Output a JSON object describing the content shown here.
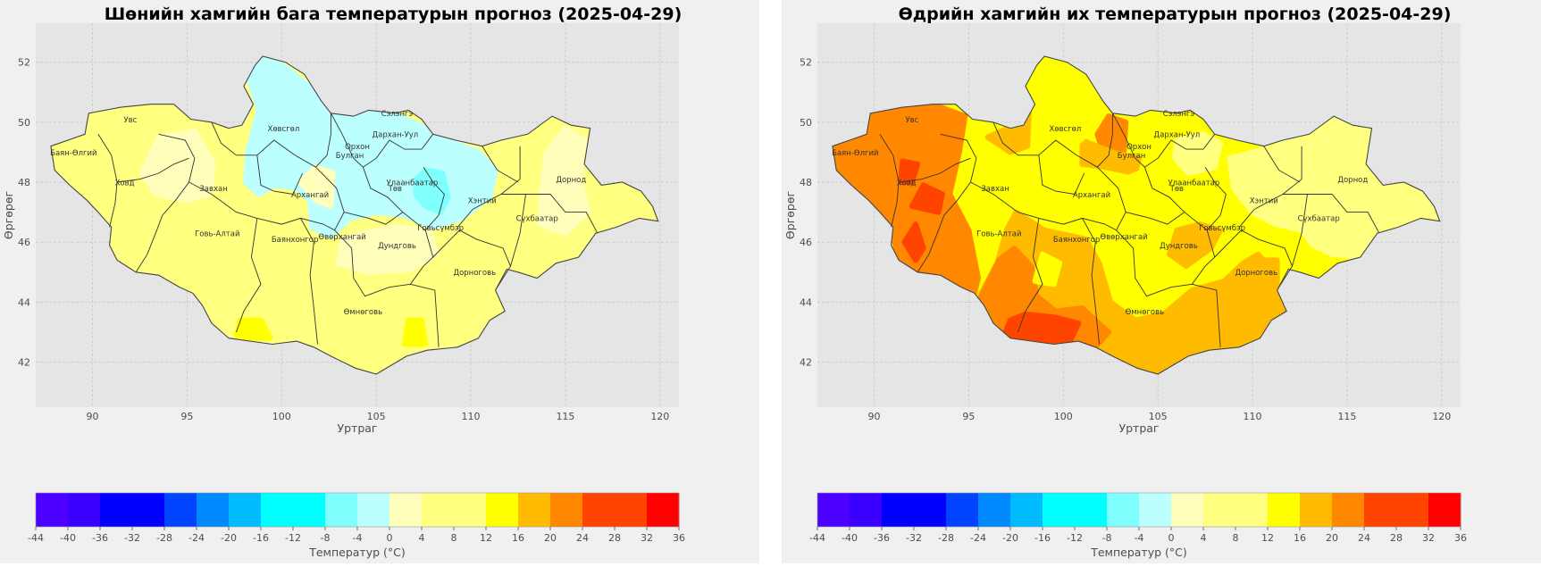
{
  "panels": [
    {
      "title": "Шөнийн хамгийн бага температурын прогноз (2025-04-29)",
      "xlabel": "Уртраг",
      "ylabel": "Өргөрөг",
      "colorbar_label": "Температур (°C)",
      "variant": "min"
    },
    {
      "title": "Өдрийн хамгийн их температурын прогноз (2025-04-29)",
      "xlabel": "Уртраг",
      "ylabel": "Өргөрөг",
      "colorbar_label": "Температур (°C)",
      "variant": "max"
    }
  ],
  "axes": {
    "x_ticks": [
      90,
      95,
      100,
      105,
      110,
      115,
      120
    ],
    "y_ticks": [
      42,
      44,
      46,
      48,
      50,
      52
    ],
    "xlim": [
      87,
      121
    ],
    "ylim": [
      40.5,
      53.3
    ]
  },
  "colorbar": {
    "levels": [
      -44,
      -40,
      -36,
      -28,
      -24,
      -20,
      -16,
      -8,
      -4,
      0,
      4,
      12,
      16,
      20,
      24,
      32,
      36
    ],
    "tick_labels": [
      "-44",
      "-40",
      "-36",
      "-32",
      "-28",
      "-24",
      "-20",
      "-16",
      "-12",
      "-8",
      "-4",
      "0",
      "4",
      "8",
      "12",
      "16",
      "20",
      "24",
      "28",
      "32",
      "36"
    ],
    "colors": [
      "#4c00ff",
      "#3a00ff",
      "#0000ff",
      "#0044ff",
      "#0088ff",
      "#00bbff",
      "#00ffff",
      "#80ffff",
      "#bbffff",
      "#ffffbb",
      "#ffff80",
      "#ffff00",
      "#ffbb00",
      "#ff8800",
      "#ff4400",
      "#ff0000"
    ]
  },
  "provinces": [
    {
      "name": "Увс",
      "lon": 92.0,
      "lat": 50.0
    },
    {
      "name": "Баян-Өлгий",
      "lon": 89.0,
      "lat": 48.9
    },
    {
      "name": "Ховд",
      "lon": 91.7,
      "lat": 47.9
    },
    {
      "name": "Хөвсгөл",
      "lon": 100.1,
      "lat": 49.7
    },
    {
      "name": "Завхан",
      "lon": 96.4,
      "lat": 47.7
    },
    {
      "name": "Говь-Алтай",
      "lon": 96.6,
      "lat": 46.2
    },
    {
      "name": "Архангай",
      "lon": 101.5,
      "lat": 47.5
    },
    {
      "name": "Баянхонгор",
      "lon": 100.7,
      "lat": 46.0
    },
    {
      "name": "Өвөрхангай",
      "lon": 103.2,
      "lat": 46.1
    },
    {
      "name": "Булган",
      "lon": 103.6,
      "lat": 48.8
    },
    {
      "name": "Орхон",
      "lon": 104.0,
      "lat": 49.1
    },
    {
      "name": "Сэлэнгэ",
      "lon": 106.1,
      "lat": 50.2
    },
    {
      "name": "Дархан-Уул",
      "lon": 106.0,
      "lat": 49.5
    },
    {
      "name": "Улаанбаатар",
      "lon": 106.9,
      "lat": 47.9
    },
    {
      "name": "Төв",
      "lon": 106.0,
      "lat": 47.7
    },
    {
      "name": "Хэнтий",
      "lon": 110.6,
      "lat": 47.3
    },
    {
      "name": "Дорнод",
      "lon": 115.3,
      "lat": 48.0
    },
    {
      "name": "Сүхбаатар",
      "lon": 113.5,
      "lat": 46.7
    },
    {
      "name": "Дундговь",
      "lon": 106.1,
      "lat": 45.8
    },
    {
      "name": "Говьсүмбэр",
      "lon": 108.4,
      "lat": 46.4
    },
    {
      "name": "Дорноговь",
      "lon": 110.2,
      "lat": 44.9
    },
    {
      "name": "Өмнөговь",
      "lon": 104.3,
      "lat": 43.6
    }
  ]
}
